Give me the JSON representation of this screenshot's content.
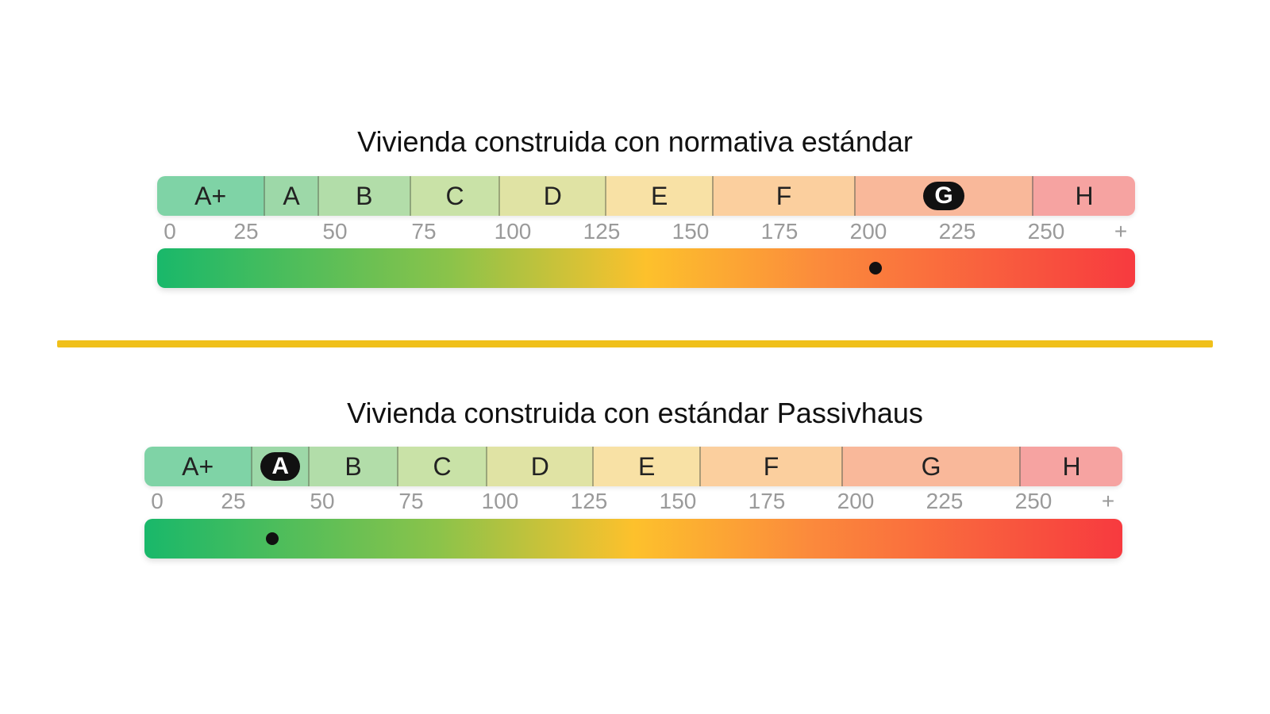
{
  "chart_data": [
    {
      "type": "bar",
      "title": "Vivienda construida con normativa estándar",
      "classes": [
        {
          "label": "A+",
          "from": 0,
          "to": 30
        },
        {
          "label": "A",
          "from": 30,
          "to": 45
        },
        {
          "label": "B",
          "from": 45,
          "to": 71
        },
        {
          "label": "C",
          "from": 71,
          "to": 96
        },
        {
          "label": "D",
          "from": 96,
          "to": 126
        },
        {
          "label": "E",
          "from": 126,
          "to": 156
        },
        {
          "label": "F",
          "from": 156,
          "to": 196
        },
        {
          "label": "G",
          "from": 196,
          "to": 246
        },
        {
          "label": "H",
          "from": 246,
          "to": 272
        }
      ],
      "ticks": [
        "0",
        "25",
        "50",
        "75",
        "100",
        "125",
        "150",
        "175",
        "200",
        "225",
        "250",
        "+"
      ],
      "xlim": [
        0,
        275
      ],
      "highlighted_class": "G",
      "value": 202
    },
    {
      "type": "bar",
      "title": "Vivienda construida con estándar Passivhaus",
      "classes": [
        {
          "label": "A+",
          "from": 0,
          "to": 30
        },
        {
          "label": "A",
          "from": 30,
          "to": 46
        },
        {
          "label": "B",
          "from": 46,
          "to": 71
        },
        {
          "label": "C",
          "from": 71,
          "to": 96
        },
        {
          "label": "D",
          "from": 96,
          "to": 126
        },
        {
          "label": "E",
          "from": 126,
          "to": 156
        },
        {
          "label": "F",
          "from": 156,
          "to": 196
        },
        {
          "label": "G",
          "from": 196,
          "to": 246
        },
        {
          "label": "H",
          "from": 246,
          "to": 272
        }
      ],
      "ticks": [
        "0",
        "25",
        "50",
        "75",
        "100",
        "125",
        "150",
        "175",
        "200",
        "225",
        "250",
        "+"
      ],
      "xlim": [
        0,
        275
      ],
      "highlighted_class": "A",
      "value": 36
    }
  ],
  "colors": {
    "class_tints": [
      "#7fd3a6",
      "#9dd8a8",
      "#b2dda9",
      "#c9e2a7",
      "#e0e3a4",
      "#f8e1a5",
      "#fbcf9e",
      "#f9b89a",
      "#f6a3a1"
    ],
    "scale_gradient": [
      "#19b86a",
      "#8bc34a",
      "#fdc12c",
      "#fb8a3c",
      "#f73a3f"
    ],
    "divider": "#f0c01a"
  }
}
